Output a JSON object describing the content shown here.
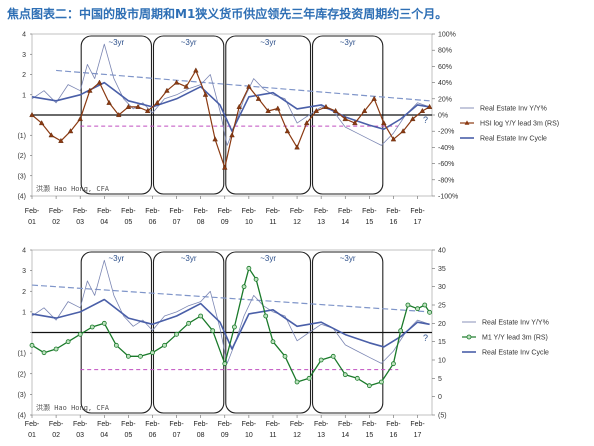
{
  "title": "焦点图表二：中国的股市周期和M1狭义货币供应领先三年库存投资周期约三个月。",
  "colors": {
    "title": "#2e6fb5",
    "series_realestate": "#4a5fa8",
    "series_hsi": "#8b3a12",
    "series_m1": "#1a7a2a",
    "trend": "#7f95c9",
    "cycle_line": "#c04fc0",
    "box": "#222222"
  },
  "chart_data": [
    {
      "type": "line",
      "x_tick_labels": [
        [
          "Feb-",
          "01"
        ],
        [
          "Feb-",
          "02"
        ],
        [
          "Feb-",
          "03"
        ],
        [
          "Feb-",
          "04"
        ],
        [
          "Feb-",
          "05"
        ],
        [
          "Feb-",
          "06"
        ],
        [
          "Feb-",
          "07"
        ],
        [
          "Feb-",
          "08"
        ],
        [
          "Feb-",
          "09"
        ],
        [
          "Feb-",
          "10"
        ],
        [
          "Feb-",
          "11"
        ],
        [
          "Feb-",
          "12"
        ],
        [
          "Feb-",
          "13"
        ],
        [
          "Feb-",
          "14"
        ],
        [
          "Feb-",
          "15"
        ],
        [
          "Feb-",
          "16"
        ],
        [
          "Feb-",
          "17"
        ]
      ],
      "x_range": [
        2001.0,
        2017.6
      ],
      "left_ticks": [
        "4",
        "3",
        "2",
        "1",
        "",
        "(1)",
        "(2)",
        "(3)",
        "(4)"
      ],
      "left_values": [
        4,
        3,
        2,
        1,
        0,
        -1,
        -2,
        -3,
        -4
      ],
      "ylim_left": [
        -4,
        4
      ],
      "right_ticks": [
        "100%",
        "80%",
        "60%",
        "40%",
        "20%",
        "0%",
        "-20%",
        "-40%",
        "-60%",
        "-80%",
        "-100%"
      ],
      "right_values": [
        100,
        80,
        60,
        40,
        20,
        0,
        -20,
        -40,
        -60,
        -80,
        -100
      ],
      "ylim_right": [
        -100,
        100
      ],
      "cycle_labels": [
        "~3yr",
        "~3yr",
        "~3yr",
        "~3yr"
      ],
      "cycle_boxes": [
        [
          2003.0,
          2006.0
        ],
        [
          2006.0,
          2009.0
        ],
        [
          2009.0,
          2012.6
        ],
        [
          2012.6,
          2015.6
        ]
      ],
      "watermark": "洪灏 Hao Hong, CFA",
      "question_mark": "?",
      "legend": [
        "Real Estate Inv Y/Y%",
        "HSI log Y/Y lead 3m (RS)",
        "Real Estate Inv Cycle"
      ],
      "cycle_line_level": -0.55,
      "trend_line": [
        [
          2002.0,
          2.2
        ],
        [
          2017.5,
          0.7
        ]
      ],
      "series": [
        {
          "name": "Real Estate Inv Y/Y%",
          "axis": "left",
          "x": [
            2001.0,
            2001.5,
            2002.0,
            2002.5,
            2003.0,
            2003.3,
            2003.6,
            2004.0,
            2004.4,
            2004.8,
            2005.2,
            2005.6,
            2006.0,
            2006.5,
            2007.0,
            2007.5,
            2008.0,
            2008.4,
            2008.8,
            2009.1,
            2009.4,
            2009.8,
            2010.2,
            2010.6,
            2011.0,
            2011.5,
            2012.0,
            2012.5,
            2013.0,
            2013.5,
            2014.0,
            2014.5,
            2015.0,
            2015.5,
            2016.0,
            2016.5,
            2017.0,
            2017.5
          ],
          "values": [
            0.8,
            1.2,
            0.6,
            1.5,
            1.2,
            2.5,
            1.8,
            3.5,
            1.8,
            0.8,
            0.3,
            0.6,
            0.1,
            0.8,
            1.0,
            1.3,
            1.5,
            2.0,
            0.2,
            -1.5,
            -0.6,
            0.8,
            1.8,
            1.3,
            1.0,
            0.8,
            -0.4,
            0.0,
            0.4,
            0.2,
            -0.6,
            -0.9,
            -1.2,
            -1.5,
            -0.9,
            0.0,
            0.6,
            0.4
          ]
        },
        {
          "name": "Real Estate Inv Cycle",
          "axis": "left",
          "x": [
            2001.0,
            2002.0,
            2003.0,
            2004.0,
            2005.0,
            2006.0,
            2007.0,
            2008.0,
            2008.8,
            2009.3,
            2010.0,
            2011.0,
            2012.0,
            2013.0,
            2014.0,
            2015.0,
            2015.6,
            2016.3,
            2017.0,
            2017.5
          ],
          "values": [
            0.9,
            0.7,
            1.0,
            1.6,
            0.7,
            0.4,
            0.8,
            1.4,
            0.5,
            -0.8,
            0.9,
            1.1,
            0.3,
            0.5,
            -0.1,
            -0.5,
            -0.7,
            -0.2,
            0.5,
            0.4
          ]
        },
        {
          "name": "HSI log Y/Y lead 3m (RS)",
          "axis": "right",
          "x": [
            2001.0,
            2001.4,
            2001.8,
            2002.2,
            2002.6,
            2003.0,
            2003.4,
            2003.8,
            2004.2,
            2004.6,
            2005.0,
            2005.4,
            2005.8,
            2006.2,
            2006.6,
            2007.0,
            2007.4,
            2007.8,
            2008.2,
            2008.6,
            2009.0,
            2009.3,
            2009.6,
            2010.0,
            2010.4,
            2010.8,
            2011.2,
            2011.6,
            2012.0,
            2012.4,
            2012.8,
            2013.2,
            2013.6,
            2014.0,
            2014.4,
            2014.8,
            2015.2,
            2015.6,
            2016.0,
            2016.4,
            2016.8,
            2017.2,
            2017.5
          ],
          "values": [
            0,
            -10,
            -25,
            -32,
            -20,
            -5,
            30,
            40,
            15,
            0,
            10,
            10,
            5,
            15,
            30,
            40,
            35,
            55,
            25,
            -30,
            -65,
            -25,
            10,
            35,
            20,
            5,
            8,
            -20,
            -40,
            -10,
            5,
            10,
            5,
            -5,
            -10,
            5,
            20,
            -10,
            -30,
            -20,
            -5,
            5,
            10
          ]
        }
      ]
    },
    {
      "type": "line",
      "x_tick_labels": [
        [
          "Feb-",
          "01"
        ],
        [
          "Feb-",
          "02"
        ],
        [
          "Feb-",
          "03"
        ],
        [
          "Feb-",
          "04"
        ],
        [
          "Feb-",
          "05"
        ],
        [
          "Feb-",
          "06"
        ],
        [
          "Feb-",
          "07"
        ],
        [
          "Feb-",
          "08"
        ],
        [
          "Feb-",
          "09"
        ],
        [
          "Feb-",
          "10"
        ],
        [
          "Feb-",
          "11"
        ],
        [
          "Feb-",
          "12"
        ],
        [
          "Feb-",
          "13"
        ],
        [
          "Feb-",
          "14"
        ],
        [
          "Feb-",
          "15"
        ],
        [
          "Feb-",
          "16"
        ],
        [
          "Feb-",
          "17"
        ]
      ],
      "x_range": [
        2001.0,
        2017.6
      ],
      "left_ticks": [
        "4",
        "3",
        "2",
        "1",
        "",
        "(1)",
        "(2)",
        "(3)",
        "(4)"
      ],
      "left_values": [
        4,
        3,
        2,
        1,
        0,
        -1,
        -2,
        -3,
        -4
      ],
      "ylim_left": [
        -4,
        4
      ],
      "right_ticks": [
        "40",
        "35",
        "30",
        "25",
        "20",
        "15",
        "10",
        "5",
        "0",
        "(5)"
      ],
      "right_values": [
        40,
        35,
        30,
        25,
        20,
        15,
        10,
        5,
        0,
        -5
      ],
      "ylim_right": [
        -5,
        40
      ],
      "cycle_labels": [
        "~3yr",
        "~3yr",
        "~3yr",
        "~3yr"
      ],
      "cycle_boxes": [
        [
          2003.0,
          2006.0
        ],
        [
          2006.0,
          2009.0
        ],
        [
          2009.0,
          2012.6
        ],
        [
          2012.6,
          2015.6
        ]
      ],
      "watermark": "洪灏 Hao Hong, CFA",
      "question_mark": "?",
      "legend": [
        "Real Estate Inv Y/Y%",
        "M1 Y/Y lead 3m (RS)",
        "Real Estate Inv Cycle"
      ],
      "cycle_line_level": -1.8,
      "trend_line": [
        [
          2001.0,
          2.3
        ],
        [
          2017.5,
          1.0
        ]
      ],
      "series": [
        {
          "name": "Real Estate Inv Y/Y%",
          "axis": "left",
          "x": [
            2001.0,
            2001.5,
            2002.0,
            2002.5,
            2003.0,
            2003.3,
            2003.6,
            2004.0,
            2004.4,
            2004.8,
            2005.2,
            2005.6,
            2006.0,
            2006.5,
            2007.0,
            2007.5,
            2008.0,
            2008.4,
            2008.8,
            2009.1,
            2009.4,
            2009.8,
            2010.2,
            2010.6,
            2011.0,
            2011.5,
            2012.0,
            2012.5,
            2013.0,
            2013.5,
            2014.0,
            2014.5,
            2015.0,
            2015.5,
            2016.0,
            2016.5,
            2017.0,
            2017.5
          ],
          "values": [
            0.8,
            1.2,
            0.6,
            1.5,
            1.2,
            2.5,
            1.8,
            3.5,
            1.8,
            0.8,
            0.3,
            0.6,
            0.1,
            0.8,
            1.0,
            1.3,
            1.5,
            2.0,
            0.2,
            -1.5,
            -0.6,
            0.8,
            1.8,
            1.3,
            1.0,
            0.8,
            -0.4,
            0.0,
            0.4,
            0.2,
            -0.6,
            -0.9,
            -1.2,
            -1.5,
            -0.9,
            0.0,
            0.6,
            0.4
          ]
        },
        {
          "name": "Real Estate Inv Cycle",
          "axis": "left",
          "x": [
            2001.0,
            2002.0,
            2003.0,
            2004.0,
            2005.0,
            2006.0,
            2007.0,
            2008.0,
            2008.8,
            2009.3,
            2010.0,
            2011.0,
            2012.0,
            2013.0,
            2014.0,
            2015.0,
            2015.6,
            2016.3,
            2017.0,
            2017.5
          ],
          "values": [
            0.9,
            0.7,
            1.0,
            1.6,
            0.7,
            0.4,
            0.8,
            1.4,
            0.5,
            -0.8,
            0.9,
            1.1,
            0.3,
            0.5,
            -0.1,
            -0.5,
            -0.7,
            -0.2,
            0.5,
            0.4
          ]
        },
        {
          "name": "M1 Y/Y lead 3m (RS)",
          "axis": "right",
          "x": [
            2001.0,
            2001.5,
            2002.0,
            2002.5,
            2003.0,
            2003.5,
            2004.0,
            2004.5,
            2005.0,
            2005.5,
            2006.0,
            2006.5,
            2007.0,
            2007.5,
            2008.0,
            2008.5,
            2009.0,
            2009.4,
            2009.8,
            2010.0,
            2010.3,
            2010.7,
            2011.0,
            2011.5,
            2012.0,
            2012.5,
            2013.0,
            2013.5,
            2014.0,
            2014.5,
            2015.0,
            2015.5,
            2016.0,
            2016.3,
            2016.6,
            2017.0,
            2017.3,
            2017.5
          ],
          "values": [
            14,
            12,
            13,
            15,
            17,
            19,
            20,
            14,
            11,
            11,
            12,
            14,
            17,
            20,
            22,
            18,
            9,
            19,
            30,
            35,
            32,
            22,
            15,
            11,
            4,
            5,
            10,
            11,
            6,
            5,
            3,
            4,
            9,
            18,
            25,
            24,
            25,
            23
          ]
        }
      ]
    }
  ]
}
